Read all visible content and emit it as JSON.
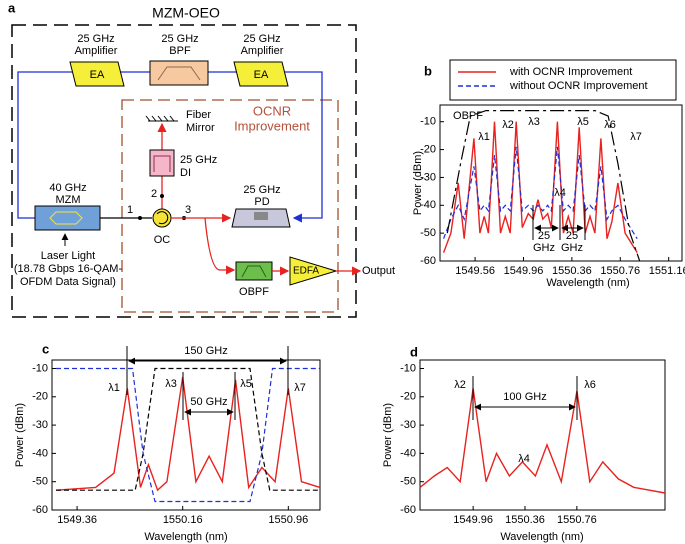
{
  "diagram": {
    "label": "a",
    "title": "MZM-OEO",
    "amp1": [
      "25 GHz",
      "Amplifier"
    ],
    "amp1_chip": "EA",
    "bpf": [
      "25 GHz",
      "BPF"
    ],
    "amp2": [
      "25 GHz",
      "Amplifier"
    ],
    "amp2_chip": "EA",
    "ocnr": [
      "OCNR",
      "Improvement"
    ],
    "mirror": [
      "Fiber",
      "Mirror"
    ],
    "di": [
      "25 GHz",
      "DI"
    ],
    "mzm": [
      "40 GHz",
      "MZM"
    ],
    "pd": [
      "25 GHz",
      "PD"
    ],
    "ports": [
      "1",
      "2",
      "3"
    ],
    "oc": "OC",
    "laser": [
      "Laser Light",
      "(18.78 Gbps 16-QAM-",
      "OFDM Data Signal)"
    ],
    "obpf": "OBPF",
    "edfa": "EDFA",
    "output": "Output"
  },
  "chart_data": [
    {
      "type": "line",
      "label": "b",
      "x_label": "Wavelength (nm)",
      "y_label": "Power (dBm)",
      "xlim": [
        1549.27,
        1551.27
      ],
      "xticks": [
        1549.56,
        1549.96,
        1550.36,
        1550.76,
        1551.16
      ],
      "ylim": [
        -60,
        -4
      ],
      "yticks": [
        -60,
        -50,
        -40,
        -30,
        -20,
        -10
      ],
      "legend": "top",
      "x": [
        1549.3,
        1549.36,
        1549.42,
        1549.47,
        1549.55,
        1549.6,
        1549.635,
        1549.67,
        1549.72,
        1549.77,
        1549.81,
        1549.85,
        1549.9,
        1549.95,
        1550.0,
        1550.04,
        1550.08,
        1550.12,
        1550.16,
        1550.19,
        1550.24,
        1550.29,
        1550.33,
        1550.37,
        1550.42,
        1550.47,
        1550.51,
        1550.55,
        1550.6,
        1550.65,
        1550.69,
        1550.74,
        1550.8,
        1550.9
      ],
      "series": [
        {
          "name": "with OCNR Improvement",
          "color": "#e8221f",
          "style": "solid",
          "values": [
            -57,
            -50,
            -32,
            -52,
            -16,
            -50,
            -44,
            -50,
            -10,
            -50,
            -44,
            -50,
            -10,
            -48,
            -43,
            -45,
            -38,
            -45,
            -43,
            -48,
            -10,
            -50,
            -44,
            -50,
            -12,
            -50,
            -44,
            -50,
            -16,
            -52,
            -46,
            -32,
            -50,
            -57
          ]
        },
        {
          "name": "without OCNR Improvement",
          "color": "#1f2fd6",
          "style": "dashed",
          "values": [
            -52,
            -45,
            -40,
            -45,
            -26,
            -42,
            -40,
            -42,
            -22,
            -42,
            -40,
            -42,
            -19,
            -42,
            -40,
            -42,
            -40,
            -42,
            -40,
            -42,
            -19,
            -42,
            -40,
            -42,
            -22,
            -42,
            -40,
            -42,
            -26,
            -45,
            -42,
            -40,
            -45,
            -52
          ]
        },
        {
          "color": "#000000",
          "style": "dashdot",
          "x": [
            1549.33,
            1549.44,
            1549.52,
            1549.65,
            1550.55,
            1550.66,
            1550.74,
            1550.84,
            1550.92
          ],
          "values": [
            -50,
            -25,
            -8,
            -6,
            -6,
            -8,
            -25,
            -50,
            -60
          ]
        }
      ],
      "annotations": [
        "OBPF",
        "λ1",
        "λ2",
        "λ3",
        "λ4",
        "λ5",
        "λ6",
        "λ7",
        [
          "25",
          "GHz"
        ],
        [
          "25",
          "GHz"
        ]
      ]
    },
    {
      "type": "line",
      "label": "c",
      "x_label": "Wavelength (nm)",
      "y_label": "Power (dBm)",
      "xlim": [
        1549.17,
        1551.2
      ],
      "xticks": [
        1549.36,
        1550.16,
        1550.96
      ],
      "ylim": [
        -60,
        -7
      ],
      "yticks": [
        -60,
        -50,
        -40,
        -30,
        -20,
        -10
      ],
      "series": [
        {
          "color": "#e8221f",
          "style": "solid",
          "x": [
            1549.2,
            1549.5,
            1549.64,
            1549.74,
            1549.84,
            1549.9,
            1549.97,
            1550.04,
            1550.16,
            1550.26,
            1550.36,
            1550.46,
            1550.56,
            1550.66,
            1550.76,
            1550.86,
            1550.96,
            1551.06,
            1551.2
          ],
          "values": [
            -53,
            -52,
            -47,
            -17,
            -52,
            -44,
            -53,
            -50,
            -13,
            -50,
            -41,
            -50,
            -14,
            -52,
            -45,
            -50,
            -17,
            -50,
            -52
          ]
        },
        {
          "color": "#000000",
          "style": "dashed",
          "x": [
            1549.2,
            1549.8,
            1549.86,
            1549.95,
            1550.67,
            1550.76,
            1550.82,
            1551.2
          ],
          "values": [
            -53,
            -53,
            -40,
            -10,
            -10,
            -40,
            -53,
            -53
          ]
        },
        {
          "color": "#1f2fd6",
          "style": "dashed",
          "x": [
            1549.2,
            1549.78,
            1549.86,
            1549.95,
            1550.67,
            1550.76,
            1550.84,
            1551.2
          ],
          "values": [
            -10,
            -10,
            -40,
            -57,
            -57,
            -40,
            -10,
            -10
          ]
        }
      ],
      "annotations": [
        "150 GHz",
        "50 GHz",
        "λ1",
        "λ3",
        "λ5",
        "λ7"
      ]
    },
    {
      "type": "line",
      "label": "d",
      "x_label": "Wavelength (nm)",
      "y_label": "Power (dBm)",
      "xlim": [
        1549.55,
        1551.44
      ],
      "xticks": [
        1549.96,
        1550.36,
        1550.76
      ],
      "ylim": [
        -60,
        -7
      ],
      "yticks": [
        -60,
        -50,
        -40,
        -30,
        -20,
        -10
      ],
      "series": [
        {
          "color": "#e8221f",
          "style": "solid",
          "x": [
            1549.55,
            1549.66,
            1549.76,
            1549.86,
            1549.96,
            1550.06,
            1550.14,
            1550.24,
            1550.34,
            1550.44,
            1550.53,
            1550.64,
            1550.76,
            1550.86,
            1550.96,
            1551.08,
            1551.2,
            1551.44
          ],
          "values": [
            -52,
            -48,
            -45,
            -50,
            -17,
            -50,
            -40,
            -48,
            -43,
            -48,
            -37,
            -50,
            -18,
            -50,
            -43,
            -49,
            -52,
            -54
          ]
        }
      ],
      "annotations": [
        "100 GHz",
        "λ2",
        "λ4",
        "λ6"
      ]
    }
  ]
}
